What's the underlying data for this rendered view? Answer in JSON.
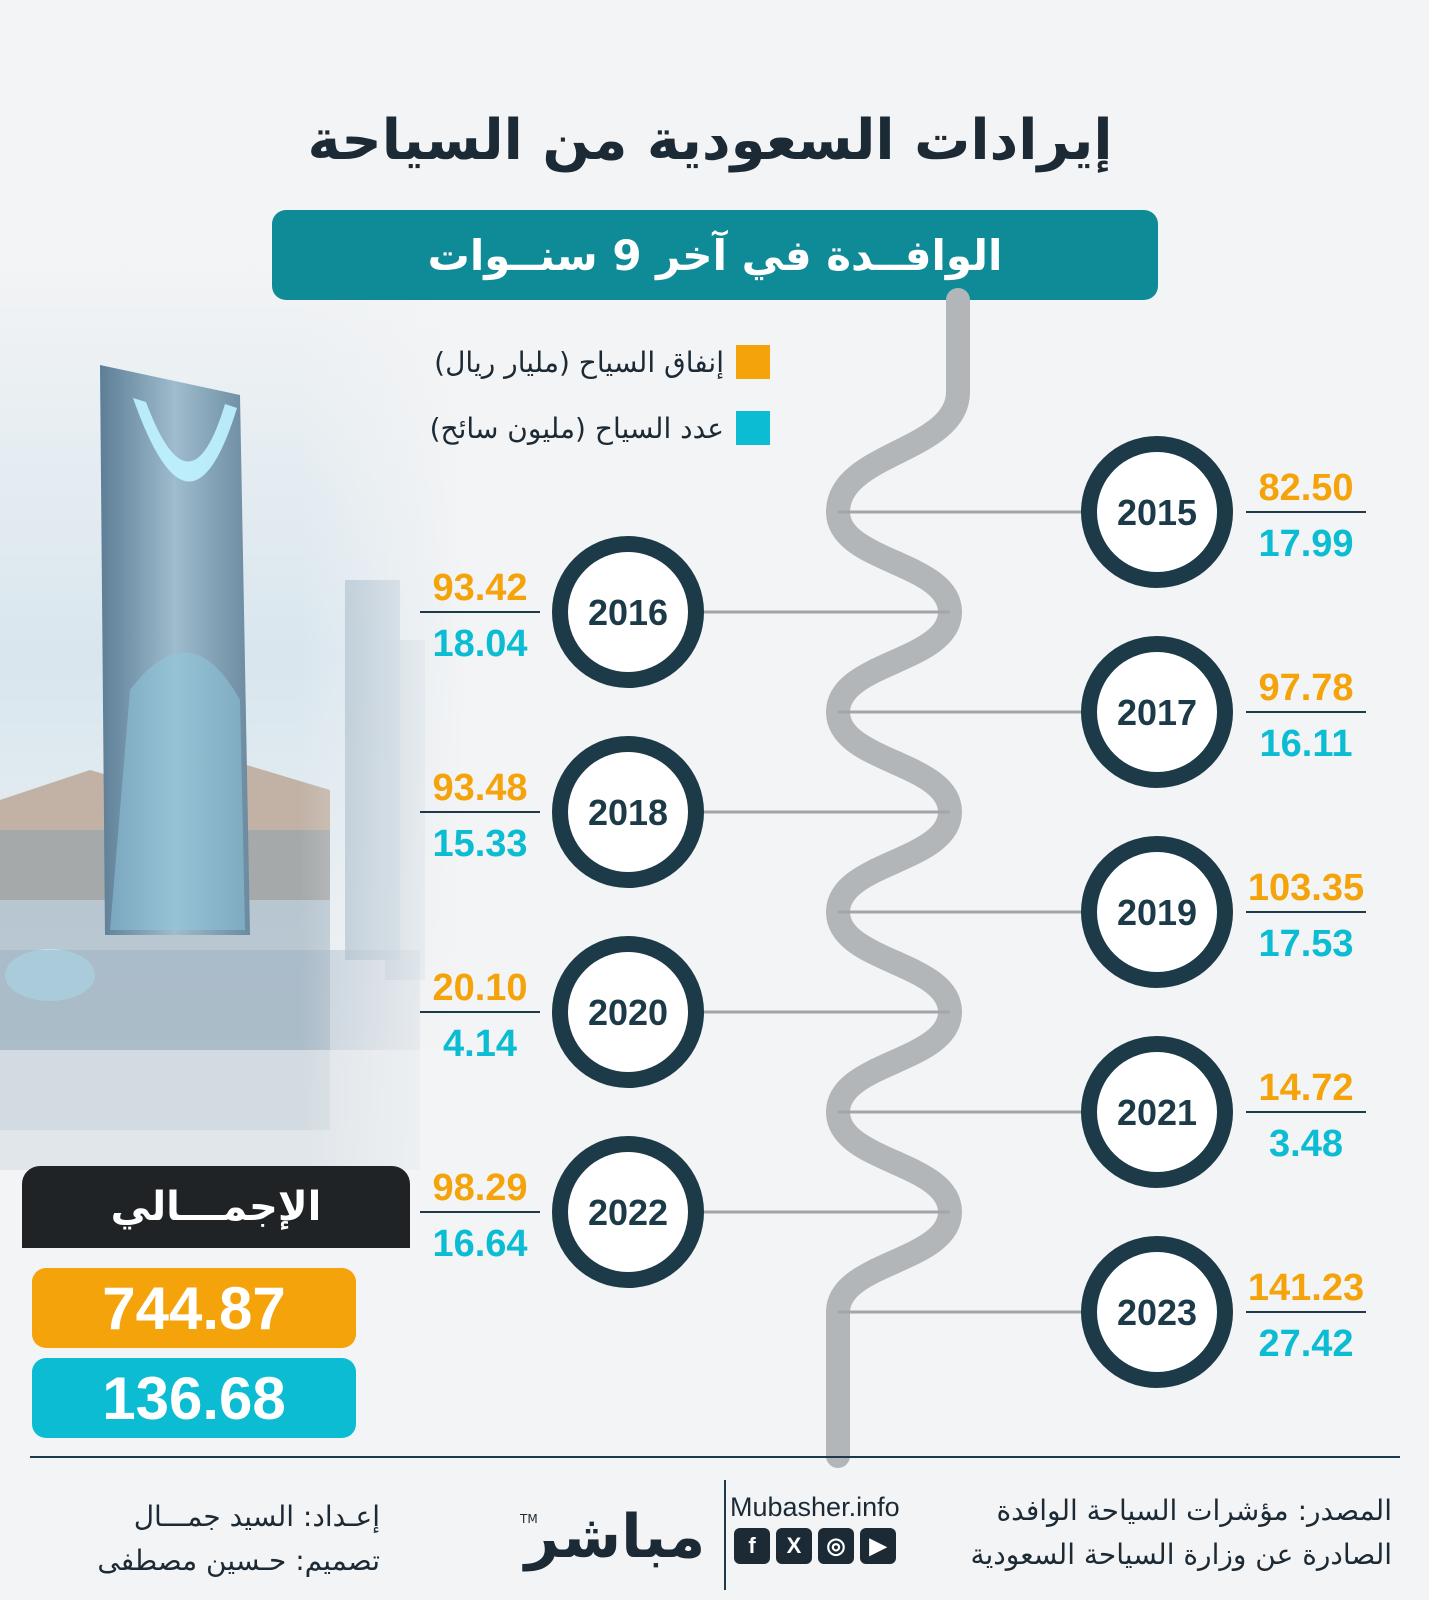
{
  "title": "إيرادات السعودية من السياحة",
  "subtitle": "الوافــدة في آخر 9 سنــوات",
  "legend": [
    {
      "label": "إنفاق السياح (مليار ريال)",
      "color": "#f5a30a"
    },
    {
      "label": "عدد السياح (مليون سائح)",
      "color": "#0bbcd3"
    }
  ],
  "chart_data": {
    "type": "timeline",
    "categories": [
      "2015",
      "2016",
      "2017",
      "2018",
      "2019",
      "2020",
      "2021",
      "2022",
      "2023"
    ],
    "series": [
      {
        "name": "إنفاق السياح (مليار ريال)",
        "color": "#f5a30a",
        "values": [
          82.5,
          93.42,
          97.78,
          93.48,
          103.35,
          20.1,
          14.72,
          98.29,
          141.23
        ]
      },
      {
        "name": "عدد السياح (مليون سائح)",
        "color": "#0bbcd3",
        "values": [
          17.99,
          18.04,
          16.11,
          15.33,
          17.53,
          4.14,
          3.48,
          16.64,
          27.42
        ]
      }
    ]
  },
  "totals": {
    "label": "الإجمـــالي",
    "spending": "744.87",
    "tourists": "136.68"
  },
  "footer": {
    "credit_prep": "إعـداد: السيد جمـــال",
    "credit_design": "تصميم: حـسين مصطفى",
    "brand": "مباشر",
    "brand_tm": "TM",
    "site": "Mubasher.info",
    "source_line1": "المصدر: مؤشرات السياحة الوافدة",
    "source_line2": "الصادرة عن وزارة السياحة السعودية"
  },
  "social": [
    "f",
    "X",
    "◎",
    "▶"
  ],
  "colors": {
    "teal_header": "#0e8b97",
    "dark_navy": "#1c3a48",
    "orange": "#f5a30a",
    "cyan": "#0bbcd3",
    "road": "#b3b6b9"
  }
}
